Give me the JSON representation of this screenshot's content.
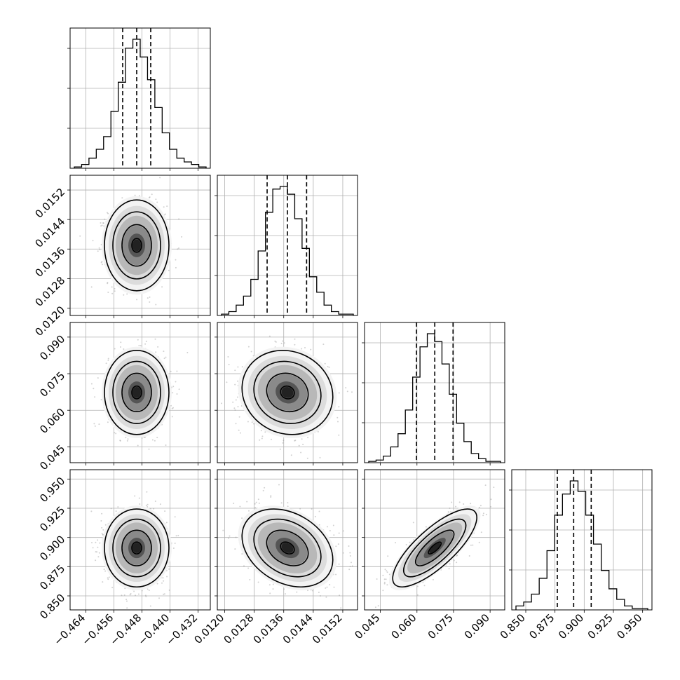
{
  "chart_data": {
    "type": "corner",
    "title": "",
    "grid": true,
    "parameters": [
      {
        "ticks": [
          -0.464,
          -0.456,
          -0.448,
          -0.44,
          -0.432
        ],
        "tick_labels": [
          "−0.464",
          "−0.456",
          "−0.448",
          "−0.440",
          "−0.432"
        ],
        "range": [
          -0.4685,
          -0.4285
        ],
        "quantiles": [
          -0.4535,
          -0.4495,
          -0.4455
        ]
      },
      {
        "ticks": [
          0.012,
          0.0128,
          0.0136,
          0.0144,
          0.0152
        ],
        "tick_labels": [
          "0.0120",
          "0.0128",
          "0.0136",
          "0.0144",
          "0.0152"
        ],
        "range": [
          0.0118,
          0.0156
        ],
        "quantiles": [
          0.01315,
          0.0137,
          0.01422
        ]
      },
      {
        "ticks": [
          0.045,
          0.06,
          0.075,
          0.09
        ],
        "tick_labels": [
          "0.045",
          "0.060",
          "0.075",
          "0.090"
        ],
        "range": [
          0.0385,
          0.096
        ],
        "quantiles": [
          0.0598,
          0.0673,
          0.0748
        ]
      },
      {
        "ticks": [
          0.85,
          0.875,
          0.9,
          0.925,
          0.95
        ],
        "tick_labels": [
          "0.850",
          "0.875",
          "0.900",
          "0.925",
          "0.950"
        ],
        "range": [
          0.838,
          0.958
        ],
        "quantiles": [
          0.877,
          0.891,
          0.906
        ]
      }
    ],
    "histograms": [
      [
        1,
        3,
        8,
        15,
        25,
        45,
        68,
        95,
        102,
        88,
        70,
        48,
        28,
        15,
        8,
        5,
        3,
        1
      ],
      [
        1,
        3,
        8,
        15,
        28,
        50,
        80,
        98,
        100,
        94,
        75,
        52,
        30,
        18,
        8,
        3,
        1,
        1
      ],
      [
        1,
        2,
        5,
        12,
        22,
        40,
        65,
        88,
        98,
        92,
        75,
        52,
        30,
        16,
        7,
        3,
        1,
        1
      ],
      [
        3,
        6,
        12,
        24,
        45,
        72,
        88,
        98,
        90,
        72,
        50,
        30,
        16,
        8,
        3,
        1,
        1
      ]
    ],
    "correlations": {
      "1-0": 0.0,
      "2-0": 0.0,
      "2-1": -0.1,
      "3-0": 0.0,
      "3-1": -0.3,
      "3-2": 0.78
    }
  }
}
